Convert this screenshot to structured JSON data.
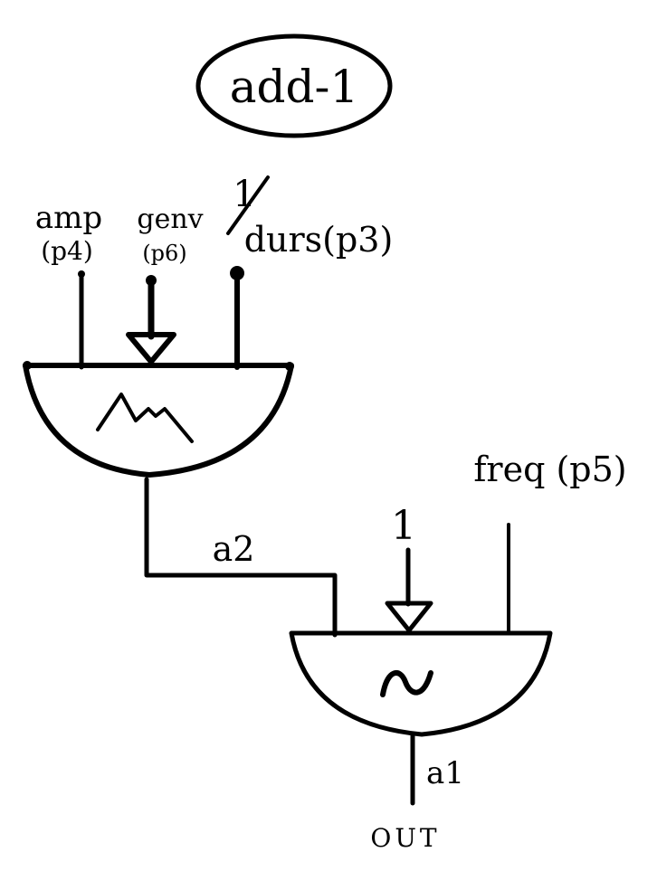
{
  "title": "add-1",
  "inputs": {
    "amp": {
      "name": "amp",
      "param": "(p4)"
    },
    "genv": {
      "name": "genv",
      "param": "(p6)"
    },
    "durs": {
      "numerator": "1",
      "name": "durs(p3)"
    },
    "osc_fn": "1",
    "freq": "freq (p5)"
  },
  "signals": {
    "envelope_out": "a2",
    "osc_out": "a1"
  },
  "output_label": "OUT",
  "icons": [
    "envelope-shape-icon",
    "sine-wave-icon",
    "arrow-icon"
  ],
  "colors": {
    "ink": "#000000",
    "paper": "#ffffff"
  }
}
